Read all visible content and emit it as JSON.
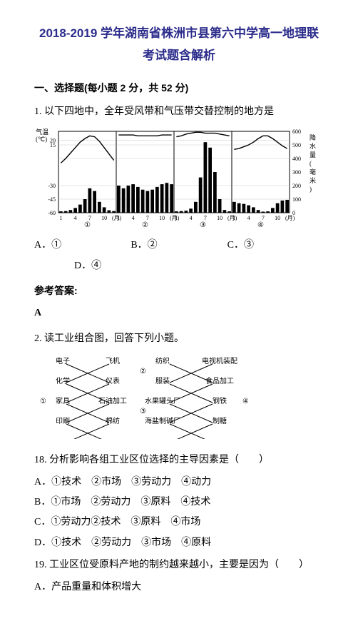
{
  "title": "2018-2019 学年湖南省株洲市县第六中学高一地理联考试题含解析",
  "section1": {
    "heading": "一、选择题(每小题 2 分，共 52 分)"
  },
  "q1": {
    "stem": "1. 以下四地中，全年受风带和气压带交替控制的地方是",
    "charts": {
      "y_label_top": "气温",
      "y_label_unit_t": "(℃)",
      "y_ticks_t": [
        "20",
        "15",
        "-30",
        "-45",
        "-60"
      ],
      "y_label_p": "降水量(毫米)",
      "y_ticks_p": [
        "600",
        "500",
        "400",
        "300",
        "200",
        "100",
        "0"
      ],
      "x_ticks": [
        "1",
        "4",
        "7",
        "10",
        "(月)"
      ],
      "panel_labels": [
        "①",
        "②",
        "③",
        "④"
      ],
      "line_color": "#000000",
      "bar_color": "#000000",
      "grid_color": "#000000",
      "bg": "#ffffff",
      "panels": [
        {
          "temp": [
            -5,
            0,
            6,
            12,
            18,
            22,
            25,
            24,
            19,
            12,
            5,
            -2
          ],
          "precip": [
            10,
            12,
            20,
            35,
            60,
            100,
            180,
            160,
            80,
            40,
            18,
            12
          ]
        },
        {
          "temp": [
            26,
            26,
            26,
            26,
            25,
            25,
            25,
            25,
            25,
            26,
            26,
            26
          ],
          "precip": [
            200,
            180,
            200,
            210,
            190,
            170,
            160,
            170,
            190,
            210,
            220,
            210
          ]
        },
        {
          "temp": [
            24,
            25,
            27,
            28,
            29,
            29,
            28,
            28,
            28,
            27,
            26,
            25
          ],
          "precip": [
            10,
            12,
            15,
            30,
            80,
            260,
            520,
            480,
            300,
            100,
            20,
            10
          ]
        },
        {
          "temp": [
            10,
            11,
            13,
            15,
            18,
            22,
            25,
            25,
            22,
            18,
            14,
            11
          ],
          "precip": [
            80,
            70,
            65,
            55,
            40,
            20,
            8,
            10,
            35,
            70,
            90,
            95
          ]
        }
      ]
    },
    "opts": {
      "a": "A．①",
      "b": "B．②",
      "c": "C．③",
      "d": "D．④"
    },
    "answer_h": "参考答案:",
    "answer": "A"
  },
  "stem2": "2. 读工业组合图，回答下列小题。",
  "diagram": {
    "row1": [
      "电子",
      "飞机",
      "纺织",
      "电视机装配"
    ],
    "row2": [
      "化学",
      "仪表",
      "服装",
      "食品加工"
    ],
    "row3": [
      "家具",
      "石油加工",
      "水果罐头厂",
      "钢铁"
    ],
    "row4": [
      "印刷",
      "棉纺",
      "海盐制碱厂",
      "制糖"
    ],
    "group_labels": [
      "①",
      "②",
      "③",
      "④"
    ],
    "line_color": "#000000"
  },
  "q18": {
    "stem": "18.  分析影响各组工业区位选择的主导因素是（　　）",
    "optA": "A．①技术　②市场　③劳动力　④动力",
    "optB": "B．①市场　②劳动力　③原料　④技术",
    "optC": "C．①劳动力②技术　③原料　④市场",
    "optD": "D．①技术　②劳动力　③市场　④原料"
  },
  "q19": {
    "stem": "19.  工业区位受原料产地的制约越来越小，主要是因为（　　）",
    "optA": "A．产品重量和体积增大"
  }
}
